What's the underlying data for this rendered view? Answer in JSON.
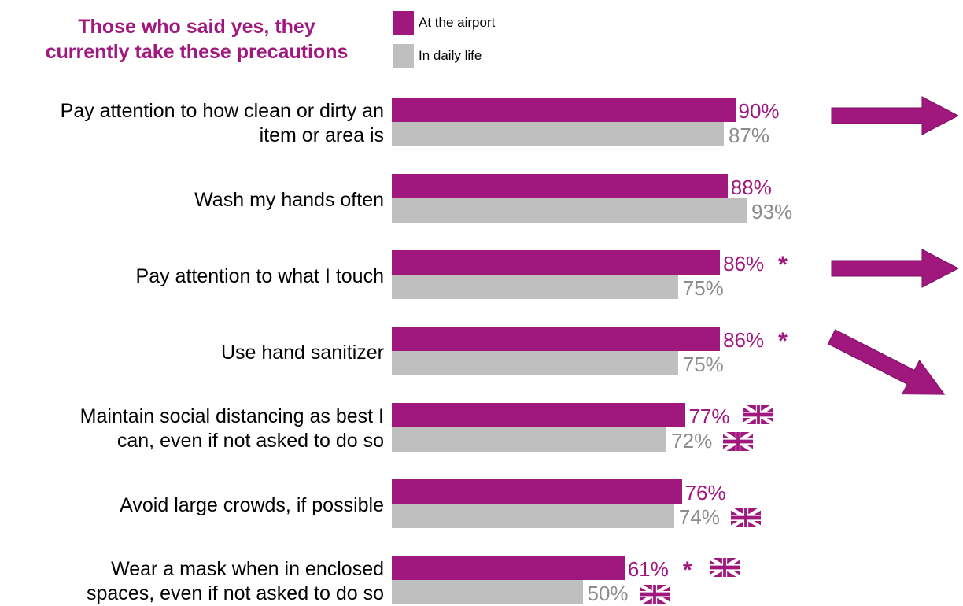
{
  "title_line1": "Those who said yes, they",
  "title_line2": "currently take these precautions",
  "colors": {
    "airport": "#A0177E",
    "daily": "#BFBFBF",
    "daily_text": "#8C8C8C"
  },
  "chart_data": {
    "type": "bar",
    "orientation": "horizontal",
    "categories": [
      [
        "Pay attention to how clean or dirty an",
        "item or area is"
      ],
      [
        "Wash my hands often"
      ],
      [
        "Pay attention to what I touch"
      ],
      [
        "Use hand sanitizer"
      ],
      [
        "Maintain social distancing as best I",
        "can, even if not asked to do so"
      ],
      [
        "Avoid large crowds, if possible"
      ],
      [
        "Wear a mask when in enclosed",
        "spaces, even if not asked to do so"
      ]
    ],
    "series": [
      {
        "name": "At the airport",
        "values": [
          90,
          88,
          86,
          86,
          77,
          76,
          61
        ],
        "labels": [
          "90%",
          "88%",
          "86%",
          "86%",
          "77%",
          "76%",
          "61%"
        ]
      },
      {
        "name": "In daily life",
        "values": [
          87,
          93,
          75,
          75,
          72,
          74,
          50
        ],
        "labels": [
          "87%",
          "93%",
          "75%",
          "75%",
          "72%",
          "74%",
          "50%"
        ]
      }
    ],
    "asterisks": [
      false,
      false,
      true,
      true,
      false,
      false,
      true
    ],
    "asterisk_symbol": "*",
    "uk_flag_airport": [
      false,
      false,
      false,
      false,
      true,
      false,
      true
    ],
    "uk_flag_daily": [
      false,
      false,
      false,
      false,
      true,
      true,
      true
    ],
    "trend_arrows": [
      "right",
      "none",
      "right",
      "down-right",
      "none",
      "none",
      "none"
    ],
    "legend_position": "top"
  }
}
